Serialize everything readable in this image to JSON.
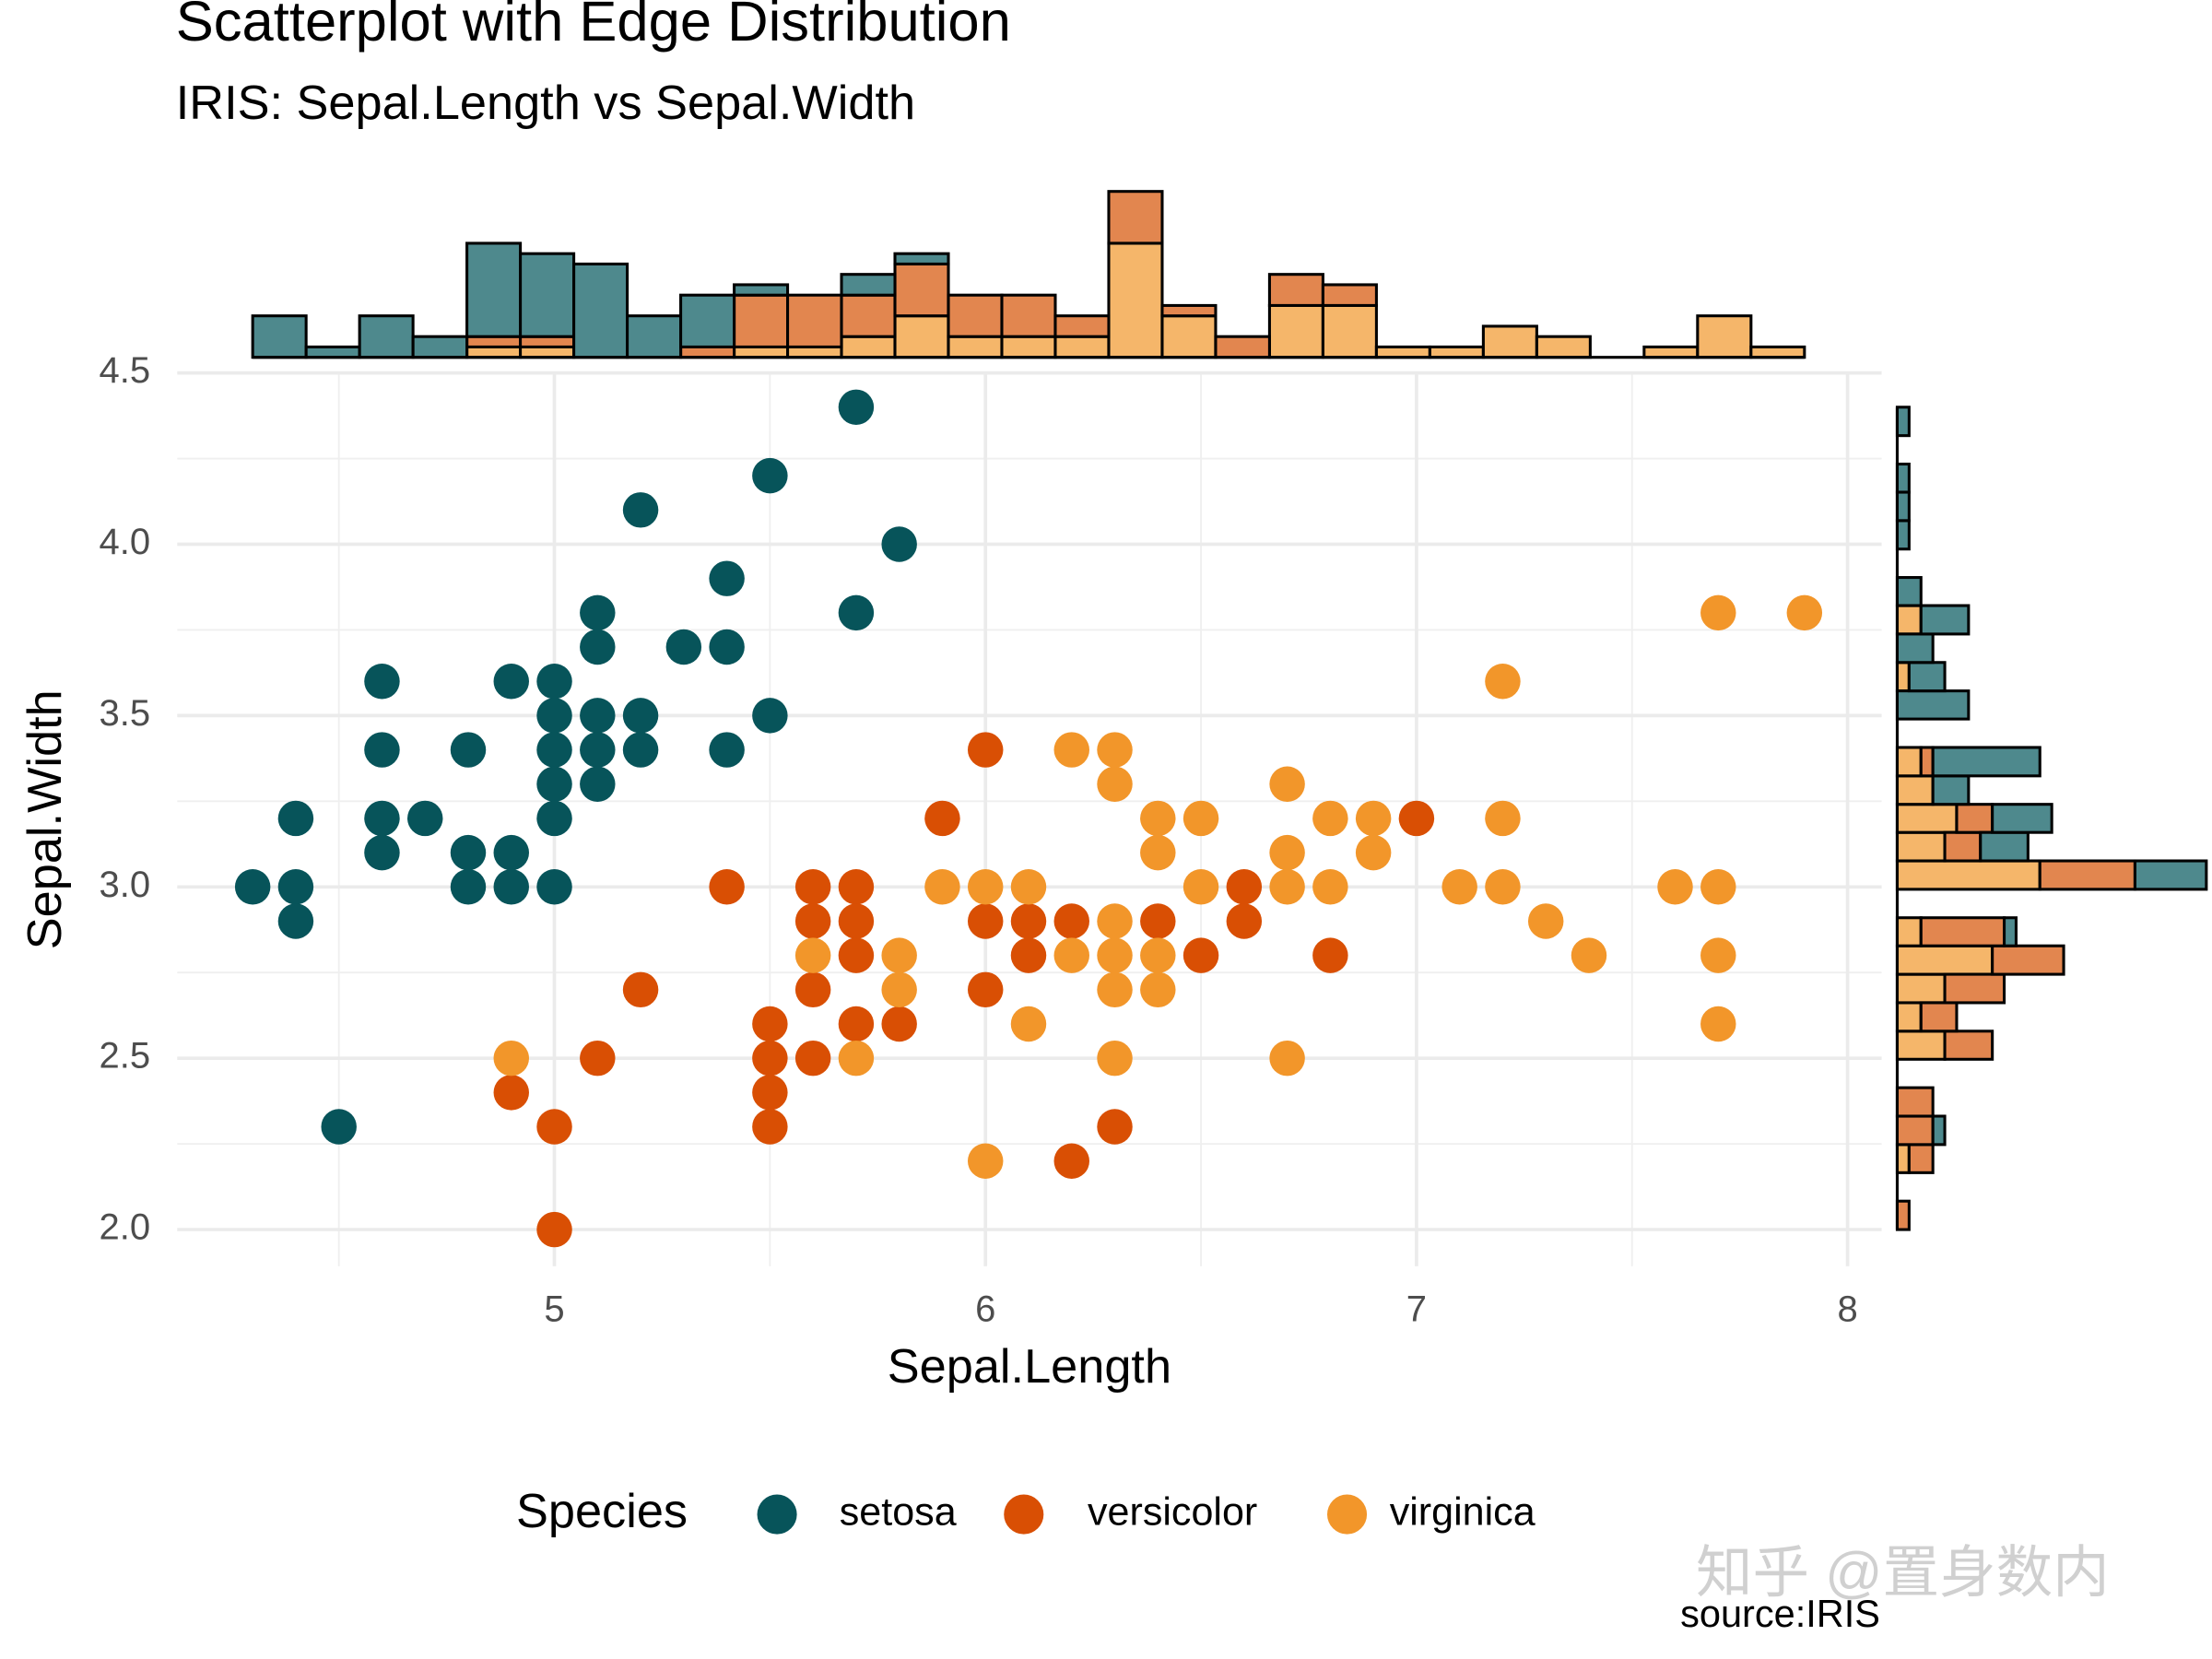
{
  "chart_data": [
    {
      "type": "scatter",
      "title": "Scatterplot with Edge Distribution",
      "subtitle": "IRIS: Sepal.Length vs Sepal.Width",
      "x_label": "Sepal.Length",
      "y_label": "Sepal.Width",
      "legend_title": "Species",
      "caption": "source:IRIS",
      "watermark": "知乎 @置身数内",
      "legend_position": "bottom",
      "grid": true,
      "xlim": [
        4.125,
        8.079
      ],
      "ylim": [
        1.893,
        4.5
      ],
      "xticks": [
        5,
        6,
        7,
        8
      ],
      "yticks": [
        {
          "value": 2,
          "label": "2.0"
        },
        2.5,
        {
          "value": 3,
          "label": "3.0"
        },
        3.5,
        {
          "value": 4,
          "label": "4.0"
        },
        4.5
      ],
      "xminor_ticks": [
        4.5,
        5.5,
        6.5,
        7.5
      ],
      "yminor_ticks": [
        2.25,
        2.75,
        3.25,
        3.75,
        4.25
      ],
      "series": [
        {
          "name": "setosa",
          "color": "#07545a",
          "x": [
            5.7,
            5.5,
            5.2,
            5.8,
            5.4,
            5.1,
            5.7,
            5.1,
            5.3,
            5.4,
            4.6,
            4.9,
            5.0,
            5.0,
            5.1,
            5.2,
            5.5,
            4.6,
            4.8,
            5.0,
            5.1,
            5.2,
            5.4,
            5.0,
            5.1,
            4.4,
            4.6,
            4.7,
            5.0,
            4.6,
            4.8,
            4.9,
            4.3,
            4.4,
            4.8,
            4.9,
            5.0,
            4.4,
            4.5
          ],
          "y": [
            4.4,
            4.2,
            4.1,
            4.0,
            3.9,
            3.8,
            3.8,
            3.7,
            3.7,
            3.7,
            3.6,
            3.6,
            3.6,
            3.5,
            3.5,
            3.5,
            3.5,
            3.4,
            3.4,
            3.4,
            3.4,
            3.4,
            3.4,
            3.3,
            3.3,
            3.2,
            3.2,
            3.2,
            3.2,
            3.1,
            3.1,
            3.1,
            3.0,
            3.0,
            3.0,
            3.0,
            3.0,
            2.9,
            2.3
          ]
        },
        {
          "name": "versicolor",
          "color": "#d94f04",
          "x": [
            6.0,
            5.9,
            7.0,
            5.4,
            5.6,
            5.7,
            6.6,
            5.6,
            5.7,
            6.0,
            6.1,
            6.2,
            6.4,
            6.6,
            5.7,
            6.1,
            6.5,
            6.8,
            5.2,
            5.6,
            6.0,
            5.5,
            5.7,
            5.8,
            5.1,
            5.5,
            5.6,
            4.9,
            5.5,
            5.0,
            5.5,
            6.3,
            6.2,
            5.0
          ],
          "y": [
            3.4,
            3.2,
            3.2,
            3.0,
            3.0,
            3.0,
            3.0,
            2.9,
            2.9,
            2.9,
            2.9,
            2.9,
            2.9,
            2.9,
            2.8,
            2.8,
            2.8,
            2.8,
            2.7,
            2.7,
            2.7,
            2.6,
            2.6,
            2.6,
            2.5,
            2.5,
            2.5,
            2.4,
            2.4,
            2.3,
            2.3,
            2.3,
            2.2,
            2.0
          ]
        },
        {
          "name": "virginica",
          "color": "#f2962a",
          "x": [
            7.7,
            7.9,
            7.2,
            6.2,
            6.3,
            6.3,
            6.7,
            6.4,
            6.5,
            6.8,
            6.9,
            7.2,
            6.4,
            6.7,
            6.9,
            5.9,
            6.0,
            6.1,
            6.5,
            6.7,
            6.8,
            7.1,
            7.2,
            7.6,
            7.7,
            6.3,
            7.3,
            5.6,
            5.8,
            6.2,
            6.3,
            6.4,
            7.4,
            7.7,
            5.8,
            6.3,
            6.4,
            6.1,
            7.7,
            4.9,
            5.7,
            6.3,
            6.7,
            6.0
          ],
          "y": [
            3.8,
            3.8,
            3.6,
            3.4,
            3.4,
            3.3,
            3.3,
            3.2,
            3.2,
            3.2,
            3.2,
            3.2,
            3.1,
            3.1,
            3.1,
            3.0,
            3.0,
            3.0,
            3.0,
            3.0,
            3.0,
            3.0,
            3.0,
            3.0,
            3.0,
            2.9,
            2.9,
            2.8,
            2.8,
            2.8,
            2.8,
            2.8,
            2.8,
            2.8,
            2.7,
            2.7,
            2.7,
            2.6,
            2.6,
            2.5,
            2.5,
            2.5,
            2.5,
            2.2
          ]
        }
      ]
    },
    {
      "type": "histogram",
      "orientation": "vertical",
      "ylim": [
        0,
        16
      ],
      "bins": [
        4.3,
        4.424,
        4.548,
        4.672,
        4.797,
        4.921,
        5.045,
        5.169,
        5.293,
        5.417,
        5.541,
        5.666,
        5.79,
        5.914,
        6.038,
        6.162,
        6.286,
        6.41,
        6.534,
        6.659,
        6.783,
        6.907,
        7.031,
        7.155,
        7.279,
        7.403,
        7.528,
        7.652,
        7.776,
        7.9
      ],
      "series": [
        {
          "color": "#f5b66a",
          "values": [
            0,
            0,
            0,
            0,
            1,
            1,
            0,
            0,
            0,
            1,
            1,
            2,
            4,
            2,
            2,
            2,
            11,
            4,
            0,
            5,
            5,
            1,
            1,
            3,
            2,
            0,
            1,
            4,
            1
          ]
        },
        {
          "color": "#e2864f",
          "values": [
            0,
            0,
            0,
            0,
            1,
            1,
            0,
            0,
            1,
            5,
            5,
            4,
            5,
            4,
            4,
            2,
            5,
            1,
            2,
            3,
            2,
            0,
            0,
            0,
            0,
            0,
            0,
            0,
            0
          ]
        },
        {
          "color": "#4e898d",
          "values": [
            4,
            1,
            4,
            2,
            9,
            8,
            9,
            4,
            5,
            1,
            0,
            2,
            1,
            0,
            0,
            0,
            0,
            0,
            0,
            0,
            0,
            0,
            0,
            0,
            0,
            0,
            0,
            0,
            0
          ]
        }
      ]
    },
    {
      "type": "histogram",
      "orientation": "horizontal",
      "xlim": [
        0,
        26
      ],
      "bins": [
        2,
        2.083,
        2.166,
        2.248,
        2.331,
        2.414,
        2.497,
        2.579,
        2.662,
        2.745,
        2.828,
        2.91,
        2.993,
        3.076,
        3.159,
        3.241,
        3.324,
        3.407,
        3.49,
        3.572,
        3.655,
        3.738,
        3.821,
        3.903,
        3.986,
        4.069,
        4.152,
        4.234,
        4.317,
        4.4
      ],
      "series": [
        {
          "color": "#f5b66a",
          "values": [
            0,
            0,
            1,
            0,
            0,
            0,
            4,
            2,
            4,
            8,
            2,
            0,
            12,
            4,
            5,
            3,
            2,
            0,
            0,
            1,
            0,
            2,
            0,
            0,
            0,
            0,
            0,
            0,
            0
          ]
        },
        {
          "color": "#e2864f",
          "values": [
            1,
            0,
            2,
            3,
            3,
            0,
            4,
            3,
            5,
            6,
            7,
            0,
            8,
            3,
            3,
            0,
            1,
            0,
            0,
            0,
            0,
            0,
            0,
            0,
            0,
            0,
            0,
            0,
            0
          ]
        },
        {
          "color": "#4e898d",
          "values": [
            0,
            0,
            0,
            1,
            0,
            0,
            0,
            0,
            0,
            0,
            1,
            0,
            6,
            4,
            5,
            3,
            9,
            0,
            6,
            3,
            3,
            4,
            2,
            0,
            1,
            1,
            1,
            0,
            1
          ]
        }
      ]
    }
  ]
}
